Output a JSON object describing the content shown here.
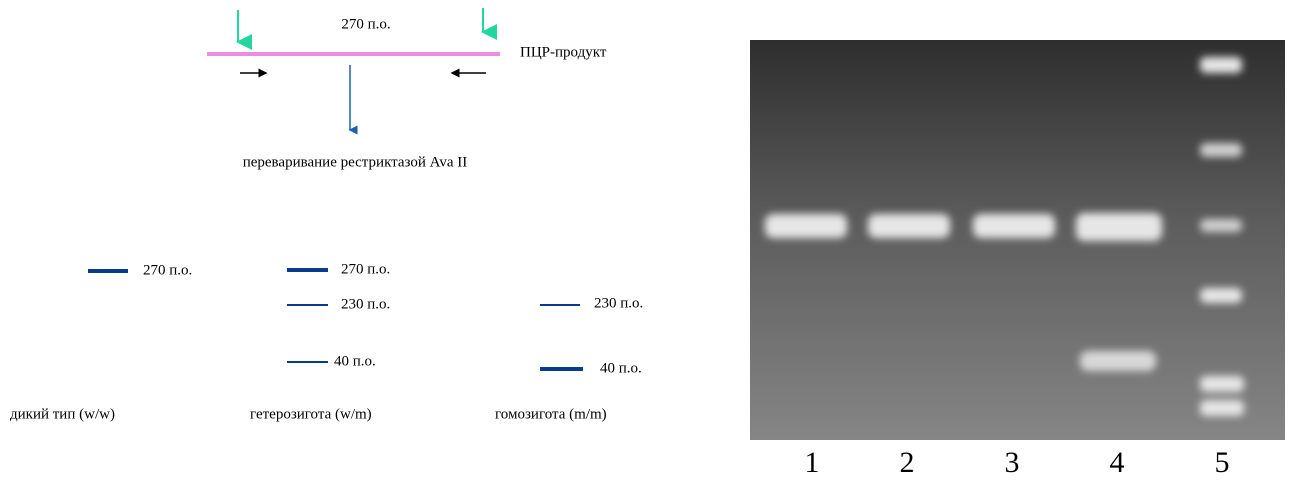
{
  "pcr": {
    "size_label": "270 п.о.",
    "product_label": "ПЦР-продукт",
    "digest_label": "переваривание рестриктазой Ava II"
  },
  "genotypes": [
    {
      "name": "дикий тип (w/w)",
      "bands": [
        "270 п.о."
      ]
    },
    {
      "name": "гетерозигота (w/m)",
      "bands": [
        "270 п.о.",
        "230 п.о.",
        "40 п.о."
      ]
    },
    {
      "name": "гомозигота (m/m)",
      "bands": [
        "230 п.о.",
        "40 п.о."
      ]
    }
  ],
  "gel": {
    "lanes": [
      "1",
      "2",
      "3",
      "4",
      "5"
    ]
  }
}
